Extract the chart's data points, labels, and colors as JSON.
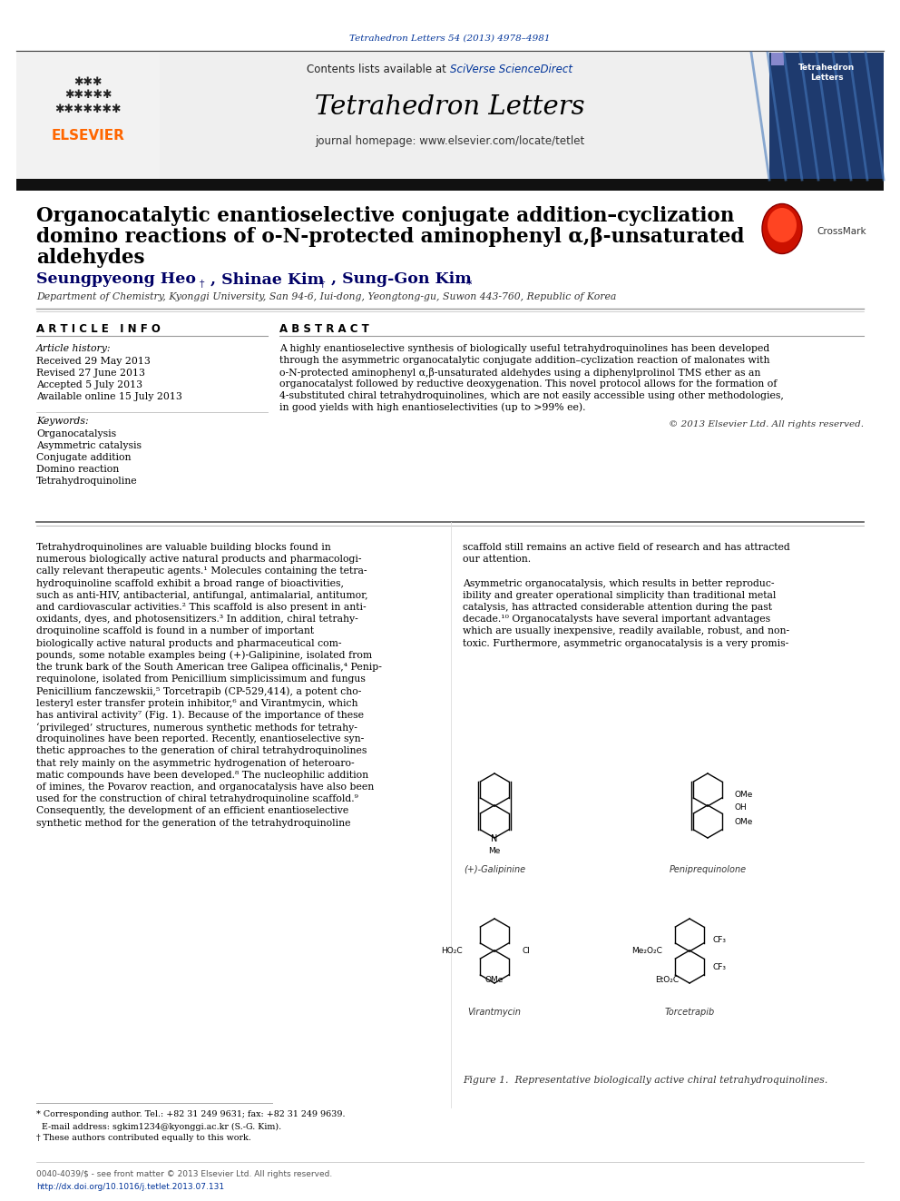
{
  "bg_color": "#ffffff",
  "header_bar_color": "#000000",
  "journal_header_bg": "#e8e8e8",
  "journal_title": "Tetrahedron Letters",
  "journal_url": "journal homepage: www.elsevier.com/locate/tetlet",
  "journal_ref": "Tetrahedron Letters 54 (2013) 4978–4981",
  "paper_title_line1": "Organocatalytic enantioselective conjugate addition–cyclization",
  "paper_title_line2": "domino reactions of o-N-protected aminophenyl α,β-unsaturated",
  "paper_title_line3": "aldehydes",
  "authors_part1": "Seungpyeong Heo",
  "authors_sup1": "†",
  "authors_part2": ", Shinae Kim",
  "authors_sup2": "†",
  "authors_part3": ", Sung-Gon Kim",
  "authors_sup3": " *",
  "affiliation": "Department of Chemistry, Kyonggi University, San 94-6, Iui-dong, Yeongtong-gu, Suwon 443-760, Republic of Korea",
  "article_info_header": "A R T I C L E   I N F O",
  "article_history_label": "Article history:",
  "received": "Received 29 May 2013",
  "revised": "Revised 27 June 2013",
  "accepted": "Accepted 5 July 2013",
  "available": "Available online 15 July 2013",
  "keywords_label": "Keywords:",
  "keywords": [
    "Organocatalysis",
    "Asymmetric catalysis",
    "Conjugate addition",
    "Domino reaction",
    "Tetrahydroquinoline"
  ],
  "abstract_header": "A B S T R A C T",
  "abstract_text": "A highly enantioselective synthesis of biologically useful tetrahydroquinolines has been developed\nthrough the asymmetric organocatalytic conjugate addition–cyclization reaction of malonates with\no-N-protected aminophenyl α,β-unsaturated aldehydes using a diphenylprolinol TMS ether as an\norganocatalyst followed by reductive deoxygenation. This novel protocol allows for the formation of\n4-substituted chiral tetrahydroquinolines, which are not easily accessible using other methodologies,\nin good yields with high enantioselectivities (up to >99% ee).",
  "copyright": "© 2013 Elsevier Ltd. All rights reserved.",
  "body_col1_lines": [
    "Tetrahydroquinolines are valuable building blocks found in",
    "numerous biologically active natural products and pharmacologi-",
    "cally relevant therapeutic agents.¹ Molecules containing the tetra-",
    "hydroquinoline scaffold exhibit a broad range of bioactivities,",
    "such as anti-HIV, antibacterial, antifungal, antimalarial, antitumor,",
    "and cardiovascular activities.² This scaffold is also present in anti-",
    "oxidants, dyes, and photosensitizers.³ In addition, chiral tetrahy-",
    "droquinoline scaffold is found in a number of important",
    "biologically active natural products and pharmaceutical com-",
    "pounds, some notable examples being (+)-Galipinine, isolated from",
    "the trunk bark of the South American tree Galipea officinalis,⁴ Penip-",
    "requinolone, isolated from Penicillium simplicissimum and fungus",
    "Penicillium fanczewskii,⁵ Torcetrapib (CP-529,414), a potent cho-",
    "lesteryl ester transfer protein inhibitor,⁶ and Virantmycin, which",
    "has antiviral activity⁷ (Fig. 1). Because of the importance of these",
    "‘privileged’ structures, numerous synthetic methods for tetrahy-",
    "droquinolines have been reported. Recently, enantioselective syn-",
    "thetic approaches to the generation of chiral tetrahydroquinolines",
    "that rely mainly on the asymmetric hydrogenation of heteroaro-",
    "matic compounds have been developed.⁸ The nucleophilic addition",
    "of imines, the Povarov reaction, and organocatalysis have also been",
    "used for the construction of chiral tetrahydroquinoline scaffold.⁹",
    "Consequently, the development of an efficient enantioselective",
    "synthetic method for the generation of the tetrahydroquinoline"
  ],
  "body_col2_lines": [
    "scaffold still remains an active field of research and has attracted",
    "our attention.",
    "",
    "Asymmetric organocatalysis, which results in better reproduc-",
    "ibility and greater operational simplicity than traditional metal",
    "catalysis, has attracted considerable attention during the past",
    "decade.¹⁰ Organocatalysts have several important advantages",
    "which are usually inexpensive, readily available, robust, and non-",
    "toxic. Furthermore, asymmetric organocatalysis is a very promis-"
  ],
  "footnote1": "* Corresponding author. Tel.: +82 31 249 9631; fax: +82 31 249 9639.",
  "footnote2": "  E-mail address: sgkim1234@kyonggi.ac.kr (S.-G. Kim).",
  "footnote3": "† These authors contributed equally to this work.",
  "footer_line1": "0040-4039/$ - see front matter © 2013 Elsevier Ltd. All rights reserved.",
  "footer_line2": "http://dx.doi.org/10.1016/j.tetlet.2013.07.131",
  "figure_caption": "Figure 1.  Representative biologically active chiral tetrahydroquinolines.",
  "elsevier_color": "#ff6600",
  "link_color": "#003399",
  "dark_link_color": "#000066",
  "text_color": "#000000",
  "gray_color": "#555555",
  "contents_text": "Contents lists available at ",
  "sciverse_text": "SciVerse ScienceDirect",
  "crossmark_text": "CrossMark"
}
